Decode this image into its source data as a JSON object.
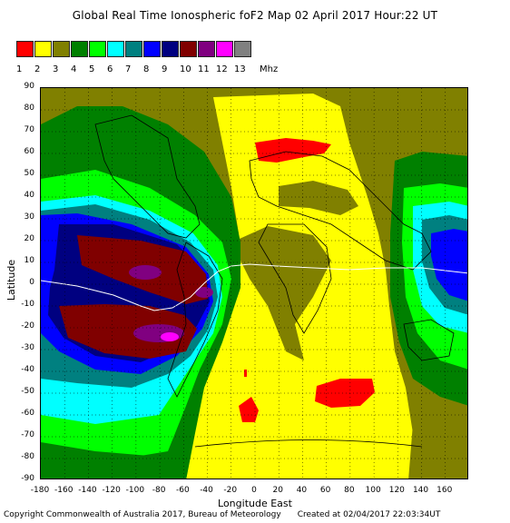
{
  "title": "Global Real Time Ionospheric foF2 Map   02 April 2017 Hour:22 UT",
  "legend": {
    "colors": [
      "#ff0000",
      "#ffff00",
      "#808000",
      "#008000",
      "#00ff00",
      "#00ffff",
      "#008080",
      "#0000ff",
      "#000080",
      "#800000",
      "#800080",
      "#ff00ff",
      "#808080"
    ],
    "labels": [
      "1",
      "2",
      "3",
      "4",
      "5",
      "6",
      "7",
      "8",
      "9",
      "10",
      "11",
      "12",
      "13"
    ],
    "unit": "Mhz"
  },
  "axes": {
    "y_label": "Latitude",
    "x_label": "Longitude East",
    "y_ticks": [
      "90",
      "80",
      "70",
      "60",
      "50",
      "40",
      "30",
      "20",
      "10",
      "0",
      "-10",
      "-20",
      "-30",
      "-40",
      "-50",
      "-60",
      "-70",
      "-80",
      "-90"
    ],
    "x_ticks": [
      "-180",
      "-160",
      "-140",
      "-120",
      "-100",
      "-80",
      "-60",
      "-40",
      "-20",
      "0",
      "20",
      "40",
      "60",
      "80",
      "100",
      "120",
      "140",
      "160"
    ],
    "xlim": [
      -180,
      180
    ],
    "ylim": [
      -90,
      90
    ]
  },
  "footer": {
    "copyright": "Copyright Commonwealth of Australia 2017, Bureau of Meteorology",
    "created": "Created at 02/04/2017 22:03:34UT"
  }
}
